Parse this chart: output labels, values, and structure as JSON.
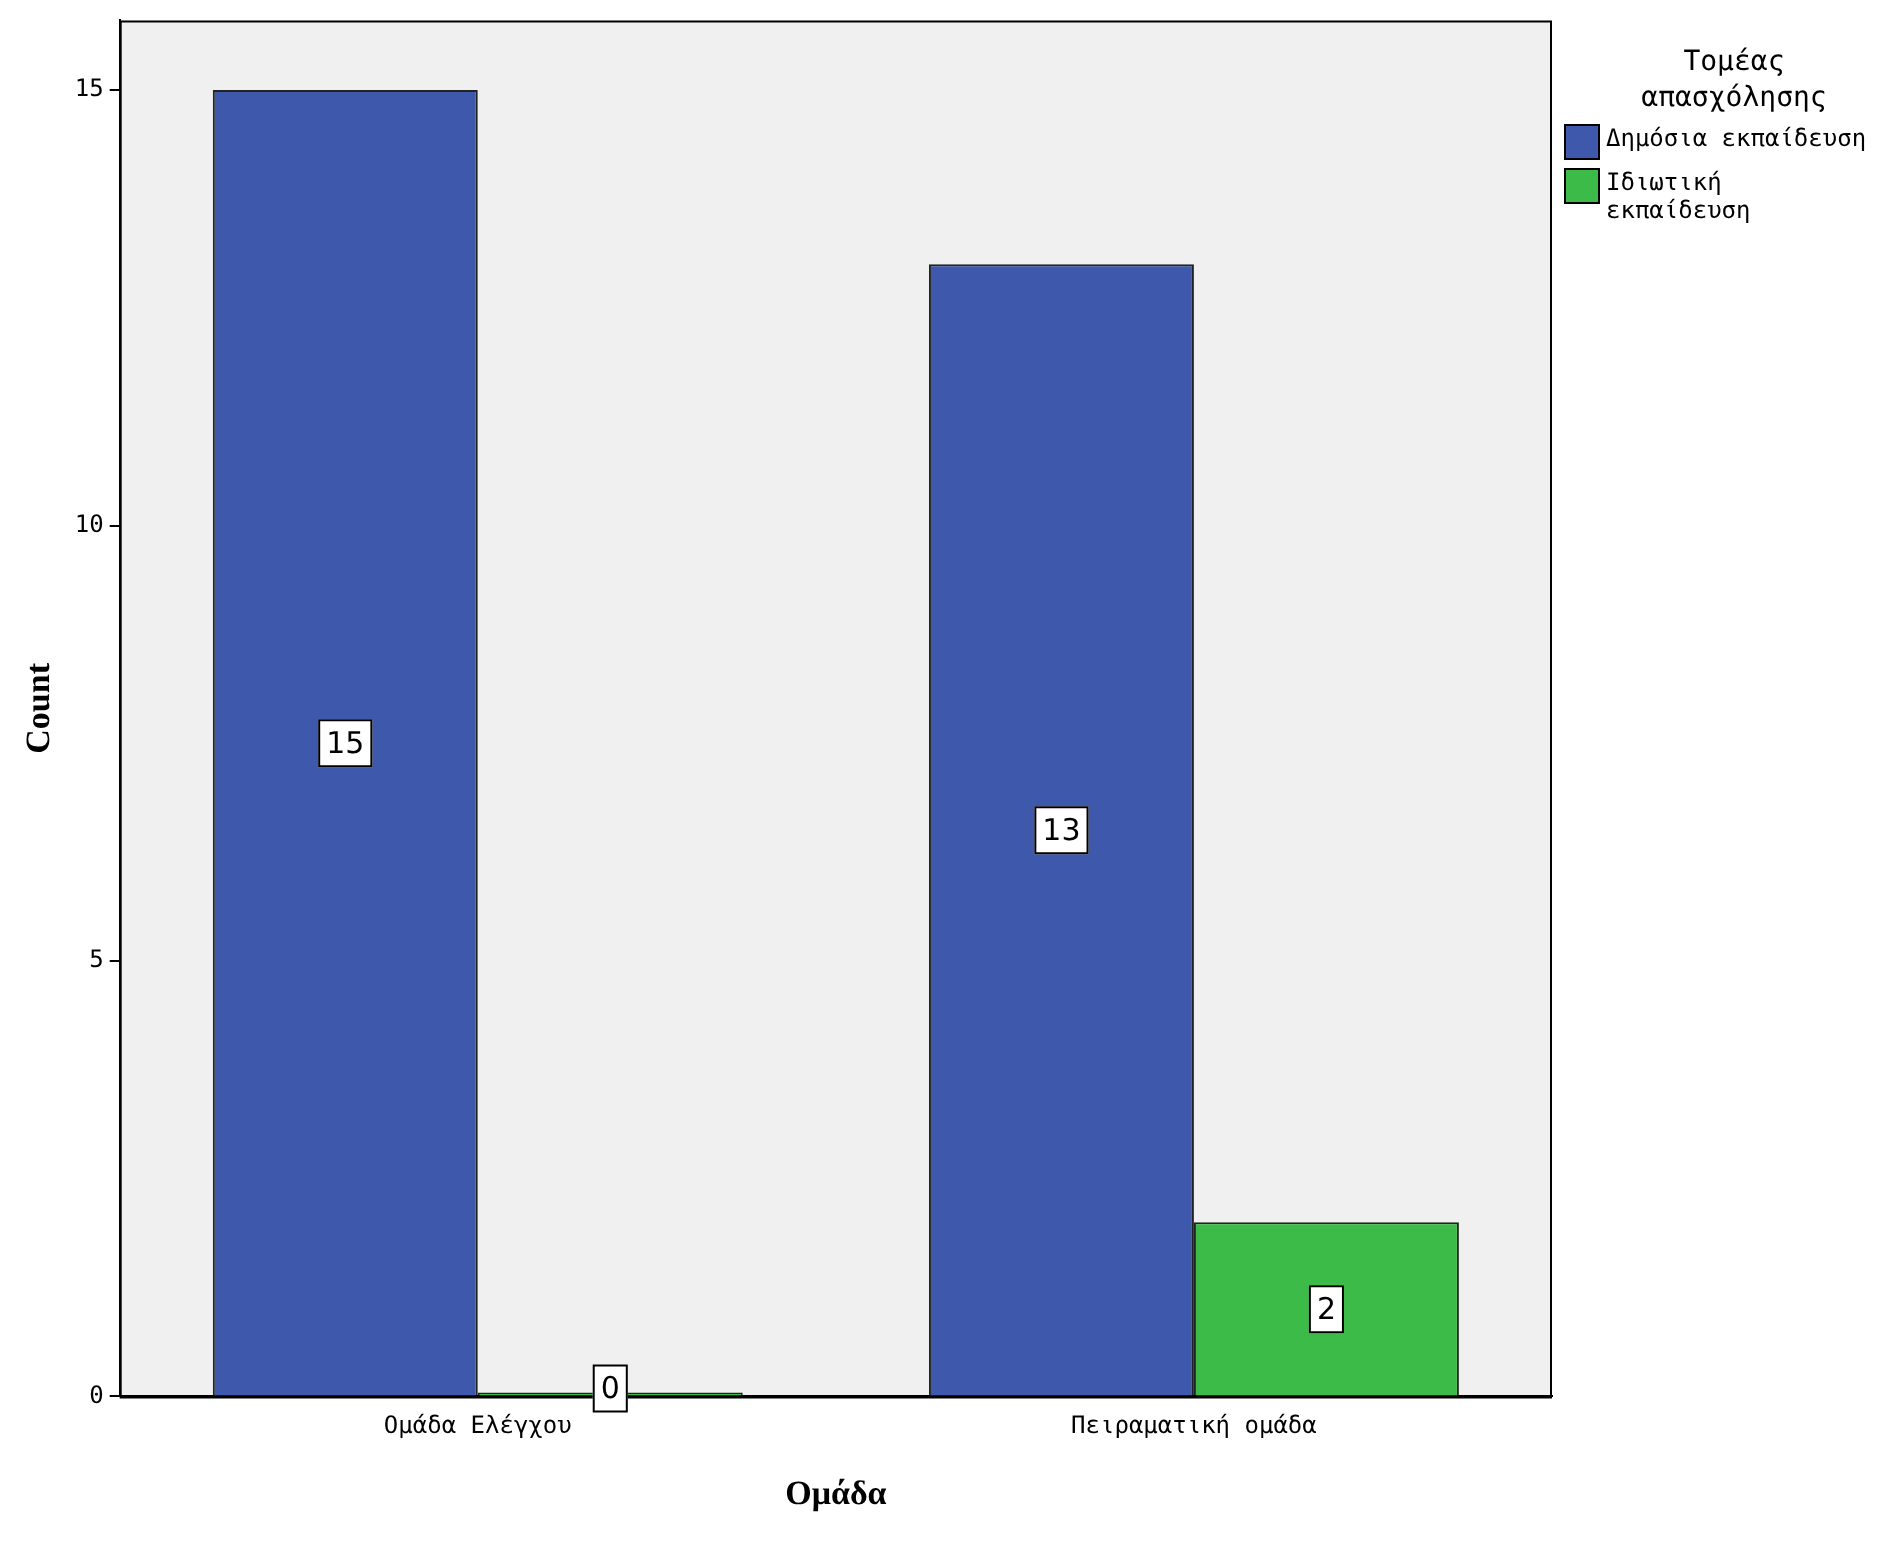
{
  "chart_data": {
    "type": "bar",
    "xlabel": "Ομάδα",
    "ylabel": "Count",
    "legend_title": "Τομέας απασχόλησης",
    "categories": [
      "Ομάδα Ελέγχου",
      "Πειραματική ομάδα"
    ],
    "series": [
      {
        "name": "Δημόσια εκπαίδευση",
        "color": "#3e58ac",
        "values": [
          15,
          13
        ]
      },
      {
        "name": "Ιδιωτική εκπαίδευση",
        "color": "#3dbb48",
        "values": [
          0,
          2
        ]
      }
    ],
    "ylim": [
      0,
      15.8
    ],
    "yticks": [
      0,
      5,
      10,
      15
    ],
    "grid": false,
    "legend": "top right",
    "data_labels": true
  }
}
